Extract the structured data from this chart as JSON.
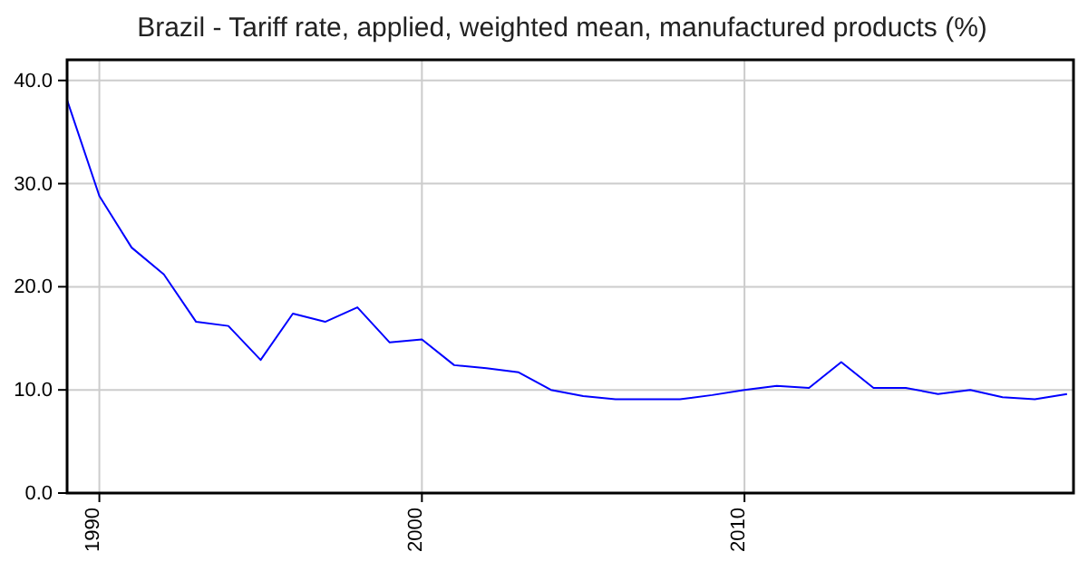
{
  "chart_data": {
    "type": "line",
    "title": "Brazil - Tariff rate, applied, weighted mean, manufactured products (%)",
    "x": [
      1989,
      1990,
      1991,
      1992,
      1993,
      1994,
      1995,
      1996,
      1997,
      1998,
      1999,
      2000,
      2001,
      2002,
      2003,
      2004,
      2005,
      2006,
      2007,
      2008,
      2009,
      2010,
      2011,
      2012,
      2013,
      2014,
      2015,
      2016,
      2017,
      2018,
      2019,
      2020
    ],
    "series": [
      {
        "color": "#0000ff",
        "values": [
          38.1,
          28.8,
          23.8,
          21.2,
          16.6,
          16.2,
          12.9,
          17.4,
          16.6,
          18.0,
          14.6,
          14.9,
          12.4,
          12.1,
          11.7,
          10.0,
          9.4,
          9.1,
          9.1,
          9.1,
          9.5,
          10.0,
          10.4,
          10.2,
          12.7,
          10.2,
          10.2,
          9.6,
          10.0,
          9.3,
          9.1,
          9.6
        ]
      }
    ],
    "xlim": [
      1989,
      2020.2
    ],
    "xticks": [
      1990,
      2000,
      2010
    ],
    "ylim": [
      0,
      42
    ],
    "yticks": [
      {
        "value": 0,
        "label": "0.0"
      },
      {
        "value": 10,
        "label": "10.0"
      },
      {
        "value": 20,
        "label": "20.0"
      },
      {
        "value": 30,
        "label": "30.0"
      },
      {
        "value": 40,
        "label": "40.0"
      }
    ],
    "grid": true,
    "marker": "none",
    "line_style": "solid"
  }
}
